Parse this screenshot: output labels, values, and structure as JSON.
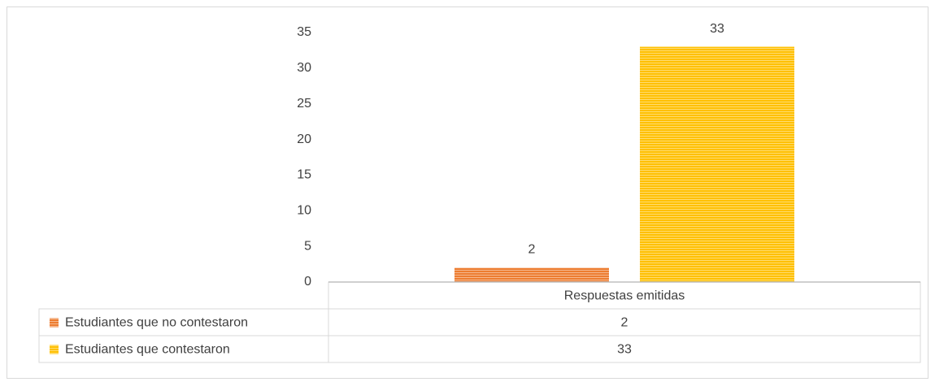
{
  "chart_data": {
    "type": "bar",
    "categories": [
      "Respuestas emitidas"
    ],
    "series": [
      {
        "name": "Estudiantes que no contestaron",
        "color": "#ed7d31",
        "values": [
          2
        ]
      },
      {
        "name": "Estudiantes que contestaron",
        "color": "#ffc000",
        "values": [
          33
        ]
      }
    ],
    "ylim": [
      0,
      35
    ],
    "yticks": [
      0,
      5,
      10,
      15,
      20,
      25,
      30,
      35
    ],
    "grid": false,
    "data_labels": true,
    "data_table": true
  }
}
